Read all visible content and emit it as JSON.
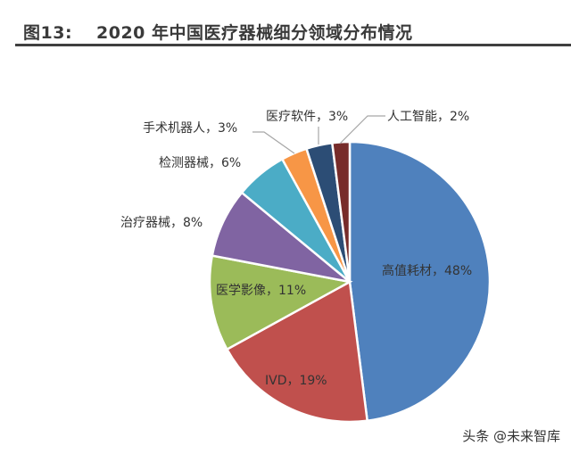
{
  "chart_data": {
    "type": "pie",
    "figure_number": "图13:",
    "title": "2020 年中国医疗器械细分领域分布情况",
    "categories": [
      "高值耗材",
      "IVD",
      "医学影像",
      "治疗器械",
      "检测器械",
      "手术机器人",
      "医疗软件",
      "人工智能"
    ],
    "values": [
      48,
      19,
      11,
      8,
      6,
      3,
      3,
      2
    ],
    "unit": "%",
    "labels": [
      "高值耗材，48%",
      "IVD，19%",
      "医学影像，11%",
      "治疗器械，8%",
      "检测器械，6%",
      "手术机器人，3%",
      "医疗软件，3%",
      "人工智能，2%"
    ],
    "colors": [
      "#4f81bd",
      "#c0504d",
      "#9bbb59",
      "#8064a2",
      "#4bacc6",
      "#f79646",
      "#2c4d75",
      "#772c2a"
    ],
    "start": "12 o'clock, clockwise"
  },
  "watermark": "头条 @未来智库"
}
